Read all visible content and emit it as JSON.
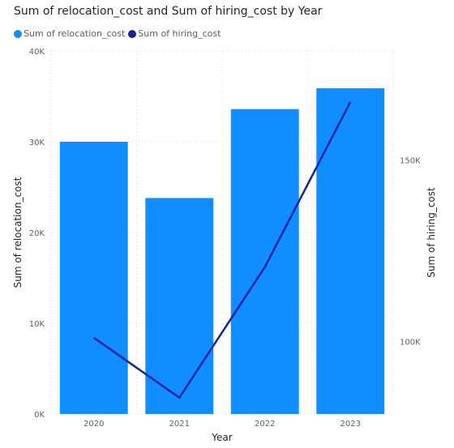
{
  "chart_data": {
    "type": "bar",
    "title": "Sum of relocation_cost and Sum of hiring_cost by Year",
    "xlabel": "Year",
    "ylabel": "Sum of relocation_cost",
    "y2label": "Sum of hiring_cost",
    "categories": [
      "2020",
      "2021",
      "2022",
      "2023"
    ],
    "ylim": [
      0,
      40000
    ],
    "y_ticks": [
      {
        "value": 0,
        "label": "0K"
      },
      {
        "value": 10000,
        "label": "10K"
      },
      {
        "value": 20000,
        "label": "20K"
      },
      {
        "value": 30000,
        "label": "30K"
      },
      {
        "value": 40000,
        "label": "40K"
      }
    ],
    "y2lim": [
      80000,
      180000
    ],
    "y2_ticks": [
      {
        "value": 100000,
        "label": "100K"
      },
      {
        "value": 150000,
        "label": "150K"
      }
    ],
    "grid": true,
    "legend_position": "top-left",
    "series": [
      {
        "name": "Sum of relocation_cost",
        "type": "bar",
        "axis": "left",
        "color": "#118dff",
        "values": [
          30000,
          23800,
          33600,
          35900
        ]
      },
      {
        "name": "Sum of hiring_cost",
        "type": "line",
        "axis": "right",
        "color": "#12239e",
        "values": [
          101000,
          84500,
          120500,
          166000
        ]
      }
    ]
  }
}
